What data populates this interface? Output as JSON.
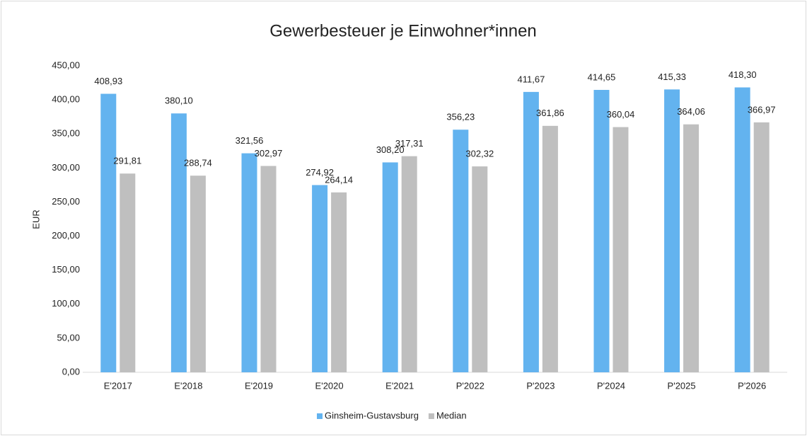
{
  "chart_data": {
    "type": "bar",
    "title": "Gewerbesteuer je Einwohner*innen",
    "ylabel": "EUR",
    "categories": [
      "E'2017",
      "E'2018",
      "E'2019",
      "E'2020",
      "E'2021",
      "P'2022",
      "P'2023",
      "P'2024",
      "P'2025",
      "P'2026"
    ],
    "series": [
      {
        "name": "Ginsheim-Gustavsburg",
        "color": "#63b3ef",
        "values": [
          408.93,
          380.1,
          321.56,
          274.92,
          308.2,
          356.23,
          411.67,
          414.65,
          415.33,
          418.3
        ],
        "value_labels": [
          "408,93",
          "380,10",
          "321,56",
          "274,92",
          "308,20",
          "356,23",
          "411,67",
          "414,65",
          "415,33",
          "418,30"
        ]
      },
      {
        "name": "Median",
        "color": "#bfbfbf",
        "values": [
          291.81,
          288.74,
          302.97,
          264.14,
          317.31,
          302.32,
          361.86,
          360.04,
          364.06,
          366.97
        ],
        "value_labels": [
          "291,81",
          "288,74",
          "302,97",
          "264,14",
          "317,31",
          "302,32",
          "361,86",
          "360,04",
          "364,06",
          "366,97"
        ]
      }
    ],
    "ylim": [
      0,
      450
    ],
    "yticks": [
      {
        "value": 0,
        "label": "0,00"
      },
      {
        "value": 50,
        "label": "50,00"
      },
      {
        "value": 100,
        "label": "100,00"
      },
      {
        "value": 150,
        "label": "150,00"
      },
      {
        "value": 200,
        "label": "200,00"
      },
      {
        "value": 250,
        "label": "250,00"
      },
      {
        "value": 300,
        "label": "300,00"
      },
      {
        "value": 350,
        "label": "350,00"
      },
      {
        "value": 400,
        "label": "400,00"
      },
      {
        "value": 450,
        "label": "450,00"
      }
    ],
    "legend": "bottom",
    "grid": false
  }
}
